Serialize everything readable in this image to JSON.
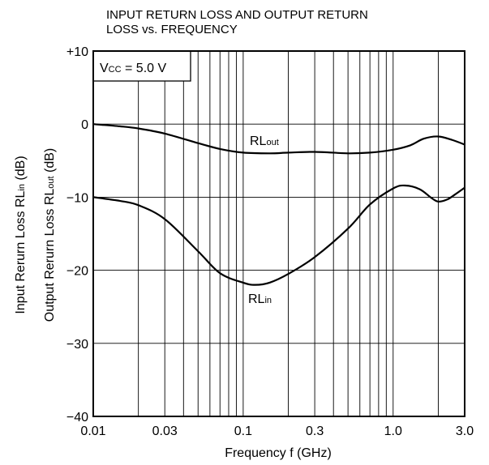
{
  "chart_data": {
    "type": "line",
    "title_line1": "INPUT RETURN LOSS AND OUTPUT RETURN",
    "title_line2": "LOSS vs. FREQUENCY",
    "xlabel": "Frequency  f (GHz)",
    "xscale": "log",
    "xlim": [
      0.01,
      3.0
    ],
    "ylim": [
      -40,
      10
    ],
    "x_ticks": [
      "0.01",
      "0.03",
      "0.1",
      "0.3",
      "1.0",
      "3.0"
    ],
    "y_ticks": [
      "+10",
      "0",
      "−10",
      "−20",
      "−30",
      "−40"
    ],
    "ylabel_input": {
      "main": "Input Rerurn Loss  RL",
      "sub": "in",
      "unit": " (dB)"
    },
    "ylabel_output": {
      "main": "Output Rerurn Loss  RL",
      "sub": "out",
      "unit": " (dB)"
    },
    "condition": {
      "main": "V",
      "sub": "CC",
      "rest": " = 5.0 V"
    },
    "grid": true,
    "series": [
      {
        "name": "RLout",
        "label_main": "RL",
        "label_sub": "out",
        "x": [
          0.01,
          0.015,
          0.02,
          0.03,
          0.05,
          0.07,
          0.1,
          0.15,
          0.2,
          0.3,
          0.5,
          0.7,
          1.0,
          1.3,
          1.6,
          2.0,
          2.5,
          3.0
        ],
        "y": [
          0,
          -0.3,
          -0.6,
          -1.3,
          -2.6,
          -3.4,
          -3.9,
          -4.0,
          -3.9,
          -3.8,
          -4.0,
          -3.9,
          -3.5,
          -2.9,
          -2.0,
          -1.7,
          -2.2,
          -2.8
        ]
      },
      {
        "name": "RLin",
        "label_main": "RL",
        "label_sub": "in",
        "x": [
          0.01,
          0.015,
          0.02,
          0.03,
          0.05,
          0.07,
          0.1,
          0.12,
          0.15,
          0.2,
          0.3,
          0.5,
          0.7,
          1.0,
          1.2,
          1.5,
          1.8,
          2.0,
          2.3,
          2.6,
          3.0
        ],
        "y": [
          -10,
          -10.5,
          -11.1,
          -13.0,
          -17.4,
          -20.4,
          -21.7,
          -22.0,
          -21.7,
          -20.5,
          -18.2,
          -14.3,
          -11.0,
          -8.8,
          -8.4,
          -8.9,
          -10.1,
          -10.6,
          -10.3,
          -9.6,
          -8.7
        ]
      }
    ]
  }
}
